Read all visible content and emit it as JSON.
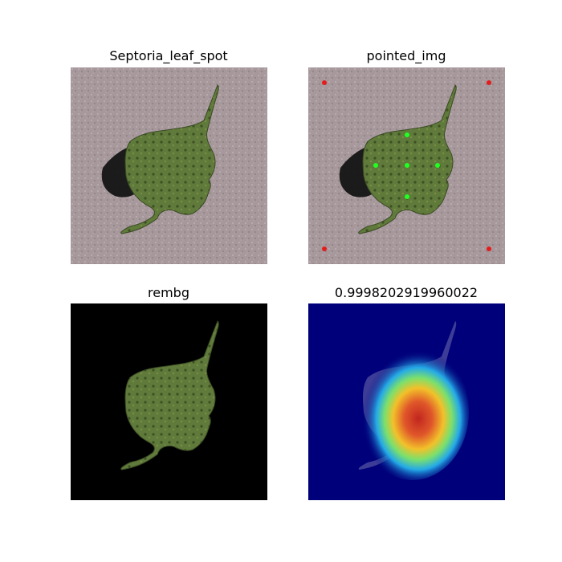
{
  "panels": [
    {
      "title": "Septoria_leaf_spot"
    },
    {
      "title": "pointed_img"
    },
    {
      "title": "rembg"
    },
    {
      "title": "0.9998202919960022"
    }
  ],
  "colors": {
    "background_surface": "#a7989c",
    "leaf": "#5f7a3a",
    "shadow": "#141414",
    "corner_points": "#e31d1d",
    "leaf_points": "#22ff22",
    "heatmap_base": "#00007a"
  }
}
